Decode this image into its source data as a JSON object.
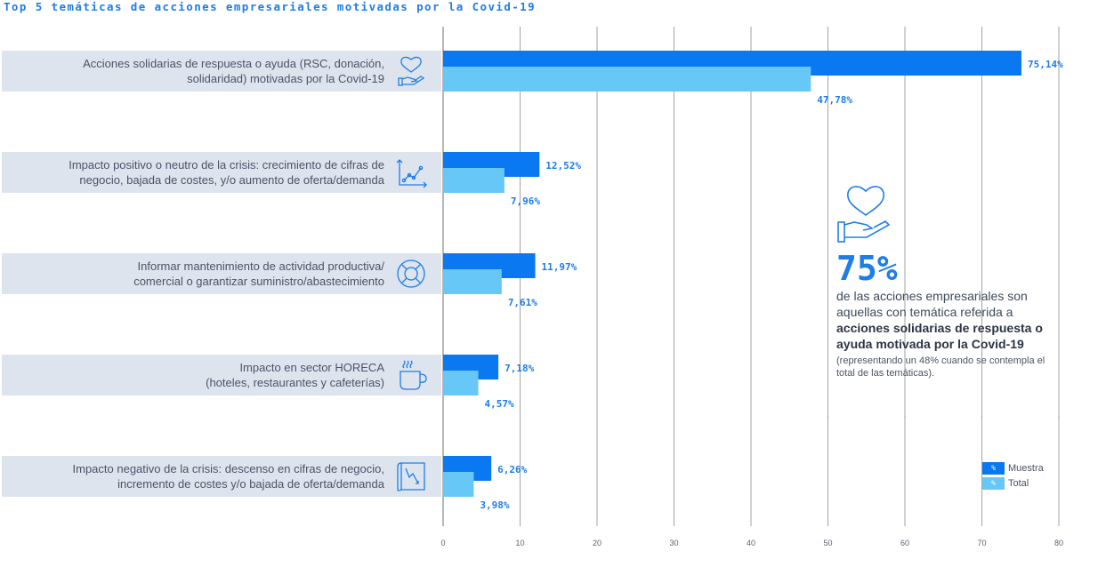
{
  "title": "Top 5 temáticas de acciones empresariales motivadas por la Covid-19",
  "colors": {
    "accent": "#1f7de6",
    "muestra": "#0a78f0",
    "total": "#67c7f7",
    "band": "#dde4ee",
    "grid": "#8c8c8c"
  },
  "categories": [
    {
      "line1": "Acciones solidarias de respuesta o ayuda (RSC, donación,",
      "line2": "solidaridad) motivadas por la Covid-19",
      "icon": "heart-hand-icon"
    },
    {
      "line1": "Impacto positivo o neutro de la crisis: crecimiento de cifras de",
      "line2": "negocio, bajada de costes, y/o aumento de oferta/demanda",
      "icon": "rising-chart-icon"
    },
    {
      "line1": "Informar mantenimiento de actividad productiva/",
      "line2": "comercial o garantizar suministro/abastecimiento",
      "icon": "lifebuoy-icon"
    },
    {
      "line1": "Impacto en sector HORECA",
      "line2": "(hoteles, restaurantes y cafeterías)",
      "icon": "coffee-cup-icon"
    },
    {
      "line1": "Impacto negativo de la crisis: descenso en cifras de negocio,",
      "line2": "incremento de costes y/o bajada de oferta/demanda",
      "icon": "falling-chart-icon"
    }
  ],
  "chart_data": {
    "type": "bar",
    "orientation": "horizontal",
    "categories": [
      "Acciones solidarias de respuesta o ayuda (RSC, donación, solidaridad) motivadas por la Covid-19",
      "Impacto positivo o neutro de la crisis: crecimiento de cifras de negocio, bajada de costes, y/o aumento de oferta/demanda",
      "Informar mantenimiento de actividad productiva/ comercial o garantizar suministro/abastecimiento",
      "Impacto en sector HORECA (hoteles, restaurantes y cafeterías)",
      "Impacto negativo de la crisis: descenso en cifras de negocio, incremento de costes y/o bajada de oferta/demanda"
    ],
    "series": [
      {
        "name": "Muestra",
        "values": [
          75.14,
          12.52,
          11.97,
          7.18,
          6.26
        ],
        "labels": [
          "75,14%",
          "12,52%",
          "11,97%",
          "7,18%",
          "6,26%"
        ],
        "color": "#0a78f0"
      },
      {
        "name": "Total",
        "values": [
          47.78,
          7.96,
          7.61,
          4.57,
          3.98
        ],
        "labels": [
          "47,78%",
          "7,96%",
          "7,61%",
          "4,57%",
          "3,98%"
        ],
        "color": "#67c7f7"
      }
    ],
    "xlim": [
      0,
      80
    ],
    "xticks": [
      0,
      10,
      20,
      30,
      40,
      50,
      60,
      70,
      80
    ],
    "xtick_labels": [
      "0",
      "10",
      "20",
      "30",
      "40",
      "50",
      "60",
      "70",
      "80"
    ],
    "grid": true,
    "legend_position": "bottom-right"
  },
  "callout": {
    "icon": "heart-hand-icon",
    "percent": "75%",
    "line1": "de las acciones empresariales son aquellas con temática referida a",
    "bold": "acciones solidarias de respuesta o ayuda motivada por la Covid-19",
    "note": "(representando un 48% cuando se contempla el total de las temáticas)."
  },
  "legend": {
    "symbol": "%",
    "items": [
      "Muestra",
      "Total"
    ]
  }
}
